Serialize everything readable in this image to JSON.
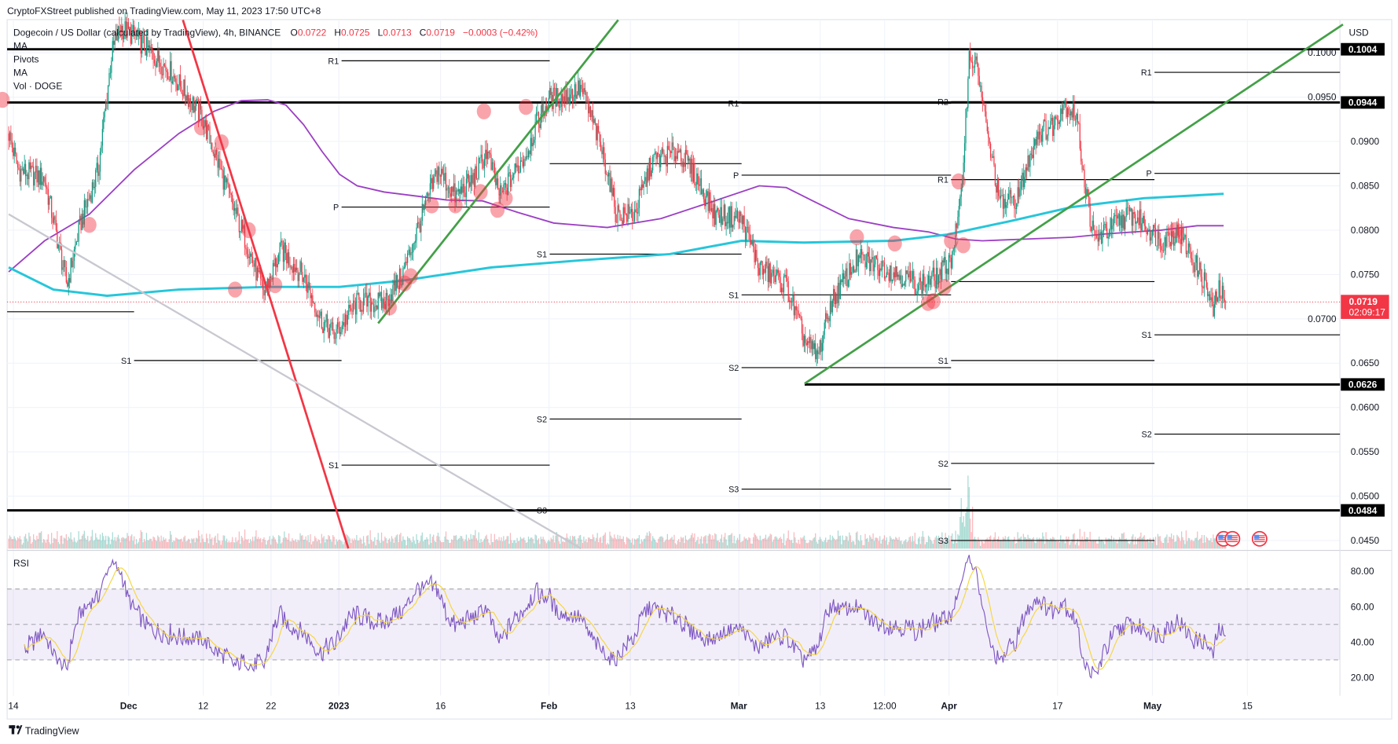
{
  "header": {
    "published": "CryptoFXStreet published on TradingView.com, May 11, 2023 17:50 UTC+8"
  },
  "legend": {
    "symbol": "Dogecoin / US Dollar (calculated by TradingView), 4h, BINANCE",
    "o_label": "O",
    "o": "0.0722",
    "h_label": "H",
    "h": "0.0725",
    "l_label": "L",
    "l": "0.0713",
    "c_label": "C",
    "c": "0.0719",
    "change": "−0.0003 (−0.42%)",
    "indicators": [
      "MA",
      "Pivots",
      "MA",
      "Vol · DOGE"
    ]
  },
  "rsi_label": "RSI",
  "brand": "TradingView",
  "chart_data": {
    "type": "candlestick",
    "title": "Dogecoin / US Dollar, 4h, BINANCE",
    "x_unit": "days since 2022-11-14",
    "currency": "USD",
    "ylim": [
      0.044,
      0.104
    ],
    "colors": {
      "up": "#089981",
      "down": "#f23645",
      "ma_slow": "#9c3fc4",
      "ma_long": "#26c6da",
      "rsi": "#7e57c2",
      "rsi_ma": "#f5d63d",
      "trend_up": "#43a047",
      "trend_down": "#f23645",
      "trend_gray": "#c8c8d0",
      "level": "#000000"
    },
    "price_path": [
      [
        -0.7,
        0.0909
      ],
      [
        0.7,
        0.0868
      ],
      [
        4.6,
        0.0858
      ],
      [
        7.9,
        0.0738
      ],
      [
        9.9,
        0.0808
      ],
      [
        12.5,
        0.0868
      ],
      [
        14.5,
        0.0999
      ],
      [
        15.8,
        0.1029
      ],
      [
        17.8,
        0.1019
      ],
      [
        20.4,
        0.0999
      ],
      [
        23.1,
        0.0979
      ],
      [
        25.0,
        0.0959
      ],
      [
        27.7,
        0.0929
      ],
      [
        29.6,
        0.0889
      ],
      [
        32.3,
        0.0828
      ],
      [
        34.3,
        0.0788
      ],
      [
        36.9,
        0.0728
      ],
      [
        39.5,
        0.0778
      ],
      [
        42.8,
        0.0748
      ],
      [
        45.5,
        0.0697
      ],
      [
        47.4,
        0.0682
      ],
      [
        50.7,
        0.0718
      ],
      [
        54.7,
        0.0718
      ],
      [
        57.3,
        0.0748
      ],
      [
        59.9,
        0.0808
      ],
      [
        62.6,
        0.0868
      ],
      [
        65.2,
        0.0838
      ],
      [
        67.9,
        0.0858
      ],
      [
        69.8,
        0.0889
      ],
      [
        71.8,
        0.0838
      ],
      [
        75.8,
        0.0889
      ],
      [
        77.1,
        0.0919
      ],
      [
        79.1,
        0.0949
      ],
      [
        81.0,
        0.0949
      ],
      [
        83.7,
        0.0959
      ],
      [
        85.6,
        0.0919
      ],
      [
        87.6,
        0.0868
      ],
      [
        88.9,
        0.0818
      ],
      [
        91.6,
        0.0818
      ],
      [
        94.2,
        0.0878
      ],
      [
        98.2,
        0.0889
      ],
      [
        100.8,
        0.0858
      ],
      [
        103.4,
        0.0818
      ],
      [
        107.4,
        0.0813
      ],
      [
        110.0,
        0.0758
      ],
      [
        114.0,
        0.0738
      ],
      [
        116.6,
        0.0677
      ],
      [
        118.6,
        0.0657
      ],
      [
        120.6,
        0.0718
      ],
      [
        124.5,
        0.0768
      ],
      [
        128.5,
        0.0758
      ],
      [
        131.1,
        0.0748
      ],
      [
        133.7,
        0.0738
      ],
      [
        136.4,
        0.0748
      ],
      [
        138.3,
        0.0768
      ],
      [
        139.7,
        0.0828
      ],
      [
        141.0,
        0.0999
      ],
      [
        142.3,
        0.0979
      ],
      [
        143.6,
        0.0909
      ],
      [
        145.6,
        0.0828
      ],
      [
        148.2,
        0.0838
      ],
      [
        150.9,
        0.0909
      ],
      [
        153.5,
        0.0919
      ],
      [
        154.8,
        0.0944
      ],
      [
        156.8,
        0.0929
      ],
      [
        158.1,
        0.0848
      ],
      [
        159.4,
        0.0788
      ],
      [
        162.7,
        0.0808
      ],
      [
        164.7,
        0.0818
      ],
      [
        166.7,
        0.0808
      ],
      [
        169.3,
        0.0788
      ],
      [
        171.9,
        0.0798
      ],
      [
        173.9,
        0.0768
      ],
      [
        175.9,
        0.0738
      ],
      [
        176.9,
        0.0707
      ],
      [
        177.8,
        0.0733
      ],
      [
        178.8,
        0.0719
      ]
    ],
    "ma_slow": [
      [
        -0.7,
        0.0753
      ],
      [
        4.6,
        0.0788
      ],
      [
        11.2,
        0.0818
      ],
      [
        17.8,
        0.0868
      ],
      [
        24.4,
        0.0909
      ],
      [
        29.6,
        0.0934
      ],
      [
        33.6,
        0.0946
      ],
      [
        37.5,
        0.0947
      ],
      [
        40.2,
        0.0941
      ],
      [
        42.8,
        0.0919
      ],
      [
        45.5,
        0.0889
      ],
      [
        48.1,
        0.0863
      ],
      [
        50.7,
        0.085
      ],
      [
        54.7,
        0.0843
      ],
      [
        59.9,
        0.0838
      ],
      [
        63.9,
        0.0834
      ],
      [
        69.2,
        0.0833
      ],
      [
        74.4,
        0.082
      ],
      [
        79.7,
        0.0808
      ],
      [
        87.6,
        0.0803
      ],
      [
        95.5,
        0.0813
      ],
      [
        103.4,
        0.0833
      ],
      [
        110.0,
        0.085
      ],
      [
        114.0,
        0.0848
      ],
      [
        117.9,
        0.0833
      ],
      [
        123.2,
        0.0813
      ],
      [
        129.8,
        0.0803
      ],
      [
        135.0,
        0.0798
      ],
      [
        139.0,
        0.079
      ],
      [
        142.9,
        0.0788
      ],
      [
        149.5,
        0.079
      ],
      [
        156.1,
        0.0792
      ],
      [
        161.4,
        0.0796
      ],
      [
        169.3,
        0.08
      ],
      [
        174.6,
        0.0805
      ],
      [
        178.5,
        0.0805
      ]
    ],
    "ma_long": [
      [
        -0.7,
        0.0758
      ],
      [
        5.9,
        0.0733
      ],
      [
        13.8,
        0.0726
      ],
      [
        24.4,
        0.0733
      ],
      [
        37.5,
        0.0736
      ],
      [
        48.1,
        0.0736
      ],
      [
        57.3,
        0.0743
      ],
      [
        70.5,
        0.0758
      ],
      [
        83.7,
        0.0766
      ],
      [
        96.8,
        0.0773
      ],
      [
        107.4,
        0.0788
      ],
      [
        116.6,
        0.0786
      ],
      [
        129.8,
        0.0788
      ],
      [
        137.7,
        0.0795
      ],
      [
        146.9,
        0.081
      ],
      [
        156.1,
        0.0826
      ],
      [
        166.7,
        0.0836
      ],
      [
        178.5,
        0.0841
      ]
    ],
    "trendlines": [
      {
        "name": "downtrend-red",
        "color": "trend_down",
        "from": [
          25.0,
          0.1037
        ],
        "to": [
          49.4,
          0.0441
        ]
      },
      {
        "name": "downtrend-gray",
        "color": "trend_gray",
        "from": [
          -0.7,
          0.0818
        ],
        "to": [
          83.7,
          0.0441
        ]
      },
      {
        "name": "uptrend-green-1",
        "color": "trend_up",
        "from": [
          53.8,
          0.0695
        ],
        "to": [
          89.2,
          0.1037
        ]
      },
      {
        "name": "uptrend-green-2",
        "color": "trend_up",
        "from": [
          116.7,
          0.0627
        ],
        "to": [
          196.1,
          0.1032
        ]
      }
    ],
    "key_levels": [
      {
        "price": 0.1004,
        "label": "0.1004",
        "from": -1.0
      },
      {
        "price": 0.0944,
        "label": "0.0944",
        "from": -1.0
      },
      {
        "price": 0.0626,
        "label": "0.0626",
        "from": 116.7
      },
      {
        "price": 0.0484,
        "label": "0.0484",
        "from": -1.0
      }
    ],
    "pivots": [
      {
        "from": -1.0,
        "to": 17.8,
        "levels": [
          {
            "label": "",
            "price": 0.0708
          }
        ]
      },
      {
        "from": 17.8,
        "to": 48.4,
        "levels": [
          {
            "label": "S1",
            "price": 0.0653
          }
        ]
      },
      {
        "from": 48.4,
        "to": 79.1,
        "levels": [
          {
            "label": "R1",
            "price": 0.0991
          },
          {
            "label": "P",
            "price": 0.0826
          },
          {
            "label": "S1",
            "price": 0.0535
          }
        ]
      },
      {
        "from": 79.1,
        "to": 107.4,
        "levels": [
          {
            "label": "",
            "price": 0.0875
          },
          {
            "label": "S1",
            "price": 0.0773
          },
          {
            "label": "S2",
            "price": 0.0587
          },
          {
            "label": "S3",
            "price": 0.0484
          }
        ]
      },
      {
        "from": 107.4,
        "to": 138.3,
        "levels": [
          {
            "label": "R1",
            "price": 0.0943
          },
          {
            "label": "P",
            "price": 0.0862
          },
          {
            "label": "S1",
            "price": 0.0727
          },
          {
            "label": "S2",
            "price": 0.0645
          },
          {
            "label": "S3",
            "price": 0.0508
          }
        ]
      },
      {
        "from": 138.3,
        "to": 168.3,
        "levels": [
          {
            "label": "R2",
            "price": 0.0945
          },
          {
            "label": "R1",
            "price": 0.0857
          },
          {
            "label": "",
            "price": 0.0742
          },
          {
            "label": "S1",
            "price": 0.0653
          },
          {
            "label": "S2",
            "price": 0.0537
          },
          {
            "label": "S3",
            "price": 0.045
          }
        ]
      },
      {
        "from": 168.3,
        "to": 196.1,
        "levels": [
          {
            "label": "R1",
            "price": 0.0978
          },
          {
            "label": "P",
            "price": 0.0864
          },
          {
            "label": "S1",
            "price": 0.0682
          },
          {
            "label": "S2",
            "price": 0.057
          }
        ]
      }
    ],
    "highlights": [
      [
        -1.6,
        0.0947
      ],
      [
        11.2,
        0.0806
      ],
      [
        27.7,
        0.0916
      ],
      [
        30.7,
        0.0899
      ],
      [
        32.7,
        0.0733
      ],
      [
        34.7,
        0.08
      ],
      [
        38.6,
        0.0738
      ],
      [
        55.5,
        0.0713
      ],
      [
        57.7,
        0.074
      ],
      [
        58.6,
        0.0748
      ],
      [
        61.7,
        0.0828
      ],
      [
        65.2,
        0.0828
      ],
      [
        68.9,
        0.0843
      ],
      [
        71.4,
        0.0823
      ],
      [
        72.6,
        0.0836
      ],
      [
        69.4,
        0.0934
      ],
      [
        75.6,
        0.0939
      ],
      [
        134.9,
        0.0718
      ],
      [
        135.7,
        0.072
      ],
      [
        137.3,
        0.0736
      ],
      [
        138.3,
        0.0788
      ],
      [
        139.4,
        0.0855
      ],
      [
        140.1,
        0.0783
      ],
      [
        124.4,
        0.0792
      ],
      [
        130.0,
        0.0785
      ],
      [
        171.4,
        0.08
      ]
    ],
    "events": [
      178.5,
      179.8,
      183.8
    ],
    "last_price": {
      "label": "0.0719",
      "countdown": "02:09:17",
      "price": 0.0719
    },
    "price_ticks": [
      "0.1000",
      "0.0950",
      "0.0900",
      "0.0850",
      "0.0800",
      "0.0750",
      "0.0700",
      "0.0650",
      "0.0600",
      "0.0550",
      "0.0500",
      "0.0450"
    ],
    "rsi_ticks": [
      "80.00",
      "60.00",
      "40.00",
      "20.00"
    ],
    "rsi_bands": [
      70,
      50,
      30
    ],
    "x_ticks": [
      {
        "label": "14",
        "day": 0
      },
      {
        "label": "Dec",
        "day": 17
      },
      {
        "label": "12",
        "day": 28
      },
      {
        "label": "22",
        "day": 38
      },
      {
        "label": "2023",
        "day": 48
      },
      {
        "label": "16",
        "day": 63
      },
      {
        "label": "Feb",
        "day": 79
      },
      {
        "label": "13",
        "day": 91
      },
      {
        "label": "Mar",
        "day": 107
      },
      {
        "label": "13",
        "day": 119
      },
      {
        "label": "12:00",
        "day": 128.5
      },
      {
        "label": "Apr",
        "day": 138
      },
      {
        "label": "17",
        "day": 154
      },
      {
        "label": "May",
        "day": 168
      },
      {
        "label": "15",
        "day": 182
      }
    ]
  }
}
